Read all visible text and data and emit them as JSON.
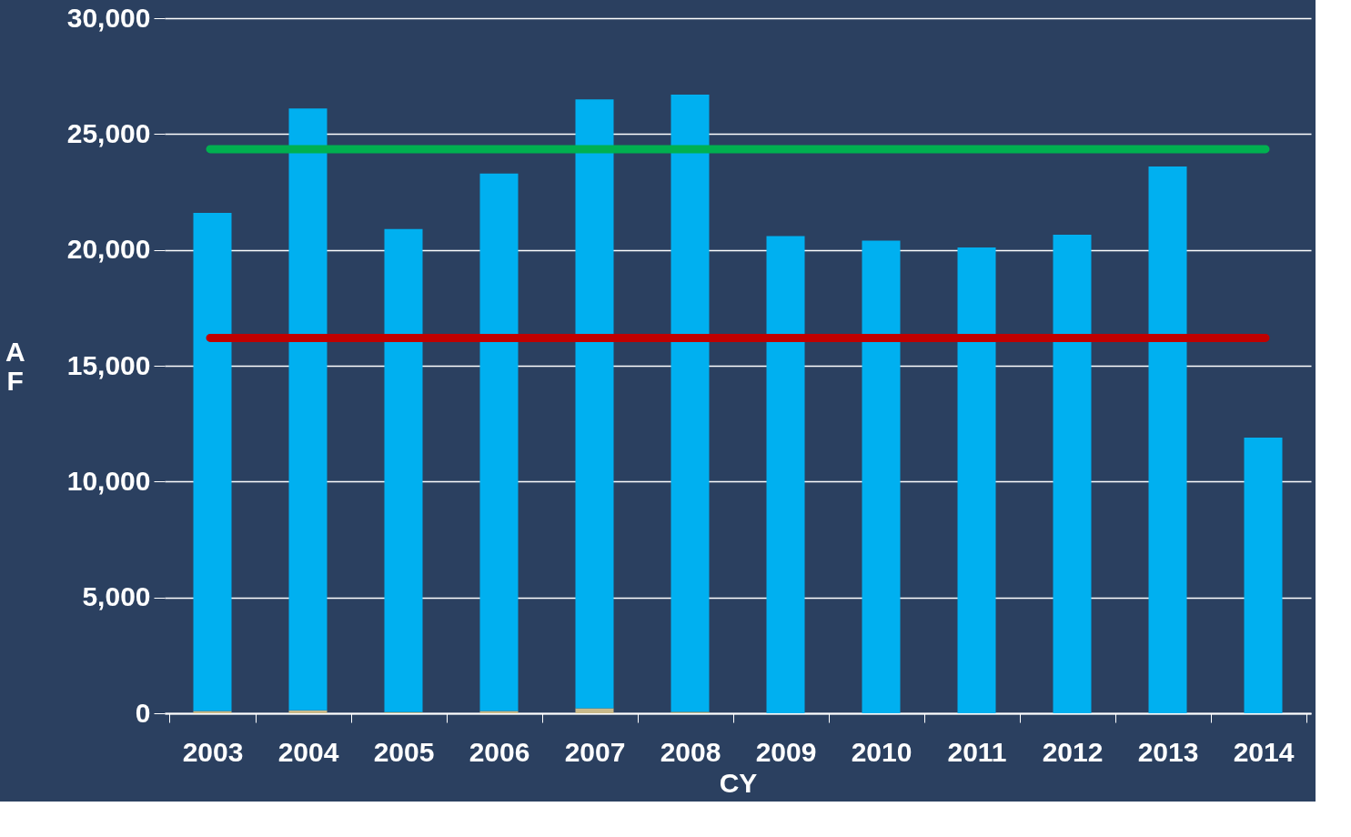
{
  "chart_data": {
    "type": "bar",
    "xlabel": "CY",
    "ylabel": "AF",
    "stacked": true,
    "categories": [
      "2003",
      "2004",
      "2005",
      "2006",
      "2007",
      "2008",
      "2009",
      "2010",
      "2011",
      "2012",
      "2013",
      "2014"
    ],
    "series": [
      {
        "color": "#c8b98a",
        "values": [
          100,
          130,
          50,
          100,
          220,
          60,
          0,
          0,
          0,
          0,
          0,
          0
        ]
      },
      {
        "color": "#00b0f0",
        "values": [
          21500,
          25970,
          20850,
          23200,
          26280,
          26640,
          20600,
          20400,
          20100,
          20650,
          23600,
          11900
        ]
      }
    ],
    "ylim": [
      0,
      30000
    ],
    "yticks": [
      {
        "value": 0,
        "label": "0"
      },
      {
        "value": 5000,
        "label": "5,000"
      },
      {
        "value": 10000,
        "label": "10,000"
      },
      {
        "value": 15000,
        "label": "15,000"
      },
      {
        "value": 20000,
        "label": "20,000"
      },
      {
        "value": 25000,
        "label": "25,000"
      },
      {
        "value": 30000,
        "label": "30,000"
      }
    ],
    "ref_lines": [
      {
        "axis": "y",
        "value": 24350,
        "color": "#00b050"
      },
      {
        "axis": "y",
        "value": 16200,
        "color": "#c00000"
      }
    ],
    "grid": "y",
    "legend": false
  }
}
